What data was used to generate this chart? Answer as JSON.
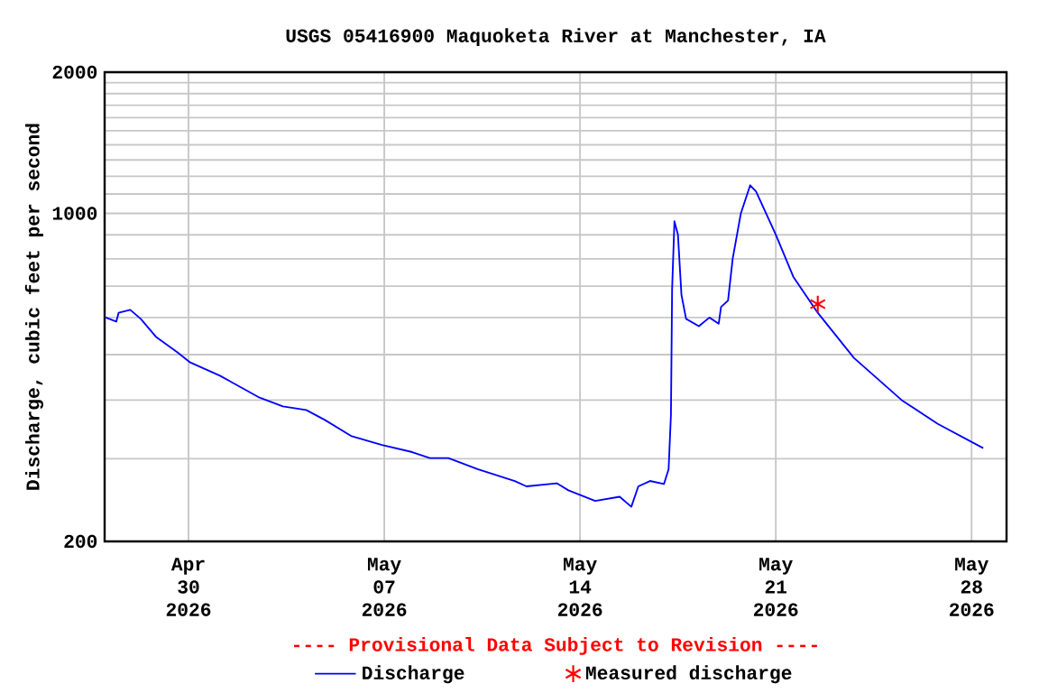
{
  "chart_data": {
    "type": "line",
    "title": "USGS 05416900 Maquoketa River at Manchester, IA",
    "ylabel": "Discharge, cubic feet per second",
    "annotations": [
      "---- Provisional Data Subject to Revision ----"
    ],
    "log": true,
    "grid": true,
    "legend": "bottom",
    "xlim": [
      "2026-04-27T00:00",
      "2026-05-29T06:00"
    ],
    "ylim": [
      200,
      2000
    ],
    "xticks": [
      {
        "value": "2026-04-30",
        "label": "Apr 30 2026"
      },
      {
        "value": "2026-05-07",
        "label": "May 07 2026"
      },
      {
        "value": "2026-05-14",
        "label": "May 14 2026"
      },
      {
        "value": "2026-05-21",
        "label": "May 21 2026"
      },
      {
        "value": "2026-05-28",
        "label": "May 28 2026"
      }
    ],
    "yticks": [
      200,
      {
        "value": 300,
        "label": null
      },
      {
        "value": 400,
        "label": null
      },
      {
        "value": 500,
        "label": null
      },
      {
        "value": 600,
        "label": null
      },
      {
        "value": 700,
        "label": null
      },
      {
        "value": 800,
        "label": null
      },
      {
        "value": 900,
        "label": null
      },
      1000,
      {
        "value": 1100,
        "label": null
      },
      {
        "value": 1200,
        "label": null
      },
      {
        "value": 1300,
        "label": null
      },
      {
        "value": 1400,
        "label": null
      },
      {
        "value": 1500,
        "label": null
      },
      {
        "value": 1600,
        "label": null
      },
      {
        "value": 1700,
        "label": null
      },
      {
        "value": 1800,
        "label": null
      },
      {
        "value": 1900,
        "label": null
      },
      2000
    ],
    "series": [
      {
        "name": "Discharge",
        "color": "#0000ff",
        "marker": "none",
        "line_style": "solid",
        "x": [
          "2026-04-27T00:00",
          "2026-04-27T10:00",
          "2026-04-27T12:00",
          "2026-04-27T22:00",
          "2026-04-28T07:00",
          "2026-04-28T20:00",
          "2026-04-29T14:00",
          "2026-04-30T01:00",
          "2026-05-01T03:00",
          "2026-05-02T12:00",
          "2026-05-03T09:00",
          "2026-05-04T05:00",
          "2026-05-04T21:00",
          "2026-05-05T20:00",
          "2026-05-06T22:00",
          "2026-05-08T00:00",
          "2026-05-08T15:00",
          "2026-05-09T07:00",
          "2026-05-10T08:00",
          "2026-05-11T16:00",
          "2026-05-12T02:00",
          "2026-05-13T04:00",
          "2026-05-13T14:00",
          "2026-05-14T13:00",
          "2026-05-15T10:00",
          "2026-05-15T20:00",
          "2026-05-16T02:00",
          "2026-05-16T12:00",
          "2026-05-17T00:00",
          "2026-05-17T04:00",
          "2026-05-17T06:00",
          "2026-05-17T07:00",
          "2026-05-17T09:00",
          "2026-05-17T12:00",
          "2026-05-17T15:00",
          "2026-05-17T19:00",
          "2026-05-18T06:00",
          "2026-05-18T15:00",
          "2026-05-18T23:00",
          "2026-05-19T01:00",
          "2026-05-19T07:00",
          "2026-05-19T11:00",
          "2026-05-19T18:00",
          "2026-05-20T02:00",
          "2026-05-20T07:00",
          "2026-05-21T00:00",
          "2026-05-21T15:00",
          "2026-05-22T12:00",
          "2026-05-23T19:00",
          "2026-05-25T12:00",
          "2026-05-26T19:00",
          "2026-05-28T10:00"
        ],
        "values": [
          601,
          588,
          614,
          623,
          596,
          546,
          507,
          482,
          451,
          406,
          388,
          381,
          363,
          335,
          321,
          310,
          301,
          301,
          285,
          269,
          262,
          266,
          257,
          244,
          249,
          237,
          262,
          269,
          265,
          285,
          372,
          690,
          962,
          901,
          671,
          596,
          575,
          600,
          582,
          632,
          652,
          801,
          1000,
          1148,
          1114,
          901,
          733,
          614,
          492,
          400,
          356,
          316
        ]
      },
      {
        "name": "Measured discharge",
        "type": "scatter",
        "color": "#ff0000",
        "marker": "cross",
        "x": [
          "2026-05-22T12:00"
        ],
        "values": [
          641
        ]
      }
    ]
  }
}
